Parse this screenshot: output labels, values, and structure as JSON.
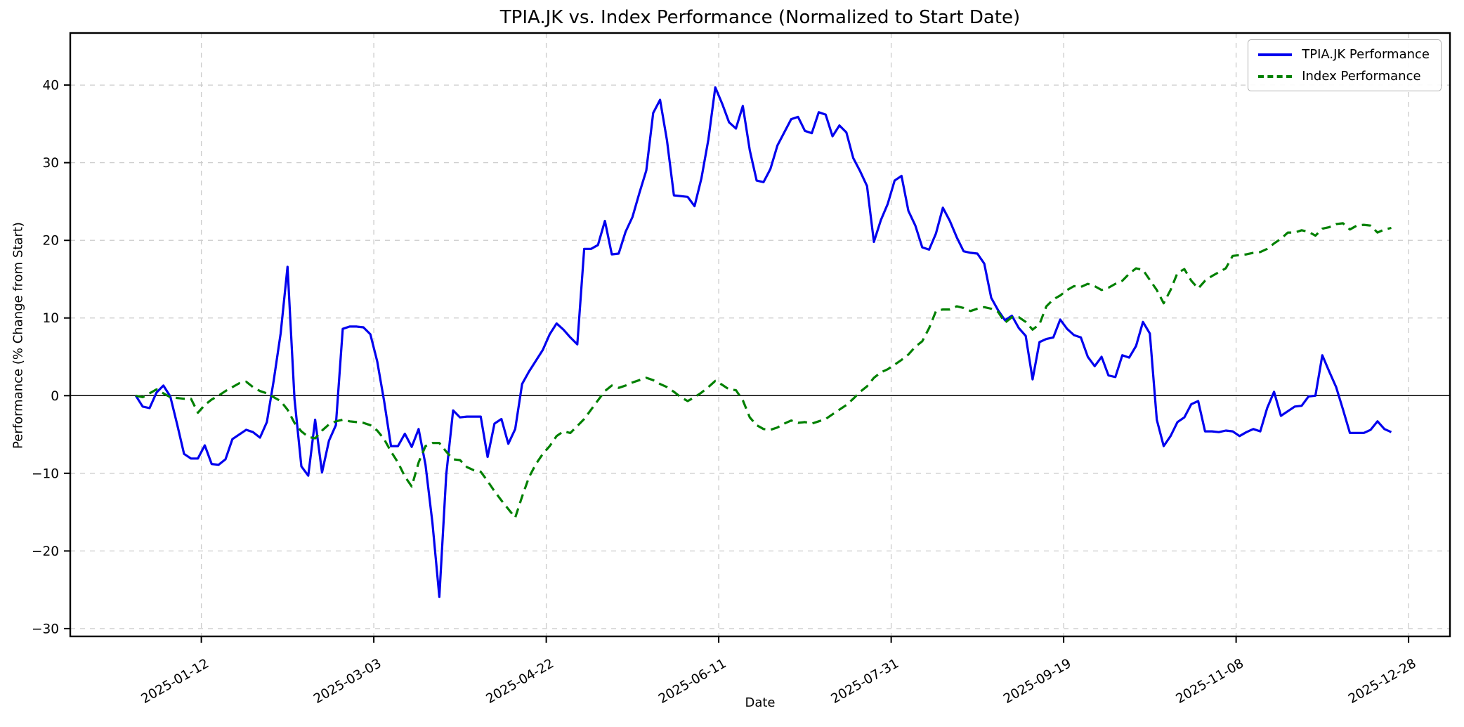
{
  "chart_data": {
    "type": "line",
    "title": "TPIA.JK vs. Index Performance (Normalized to Start Date)",
    "xlabel": "Date",
    "ylabel": "Performance (% Change from Start)",
    "grid": true,
    "grid_style": "dashed",
    "grid_color": "#cccccc",
    "background_color": "#ffffff",
    "zero_line": true,
    "zero_line_color": "#000000",
    "legend_position": "upper right",
    "ylim": [
      -31.0,
      46.7
    ],
    "yticks": [
      -30,
      -20,
      -10,
      0,
      10,
      20,
      30,
      40
    ],
    "x_axis": {
      "start": "2024-12-05",
      "end": "2026-01-09"
    },
    "xticks": [
      "2025-01-12",
      "2025-03-03",
      "2025-04-22",
      "2025-06-11",
      "2025-07-31",
      "2025-09-19",
      "2025-11-08",
      "2025-12-28"
    ],
    "xtick_rotation_deg": 30,
    "sampling_note": "series values estimated from plot, sampled every 2 days",
    "series": [
      {
        "name": "TPIA.JK Performance",
        "color": "#0000ee",
        "style": "solid",
        "start_date": "2024-12-24",
        "step_days": 2,
        "values": [
          0,
          -1.4,
          -1.6,
          0.4,
          1.3,
          -0.1,
          -3.7,
          -7.5,
          -8.1,
          -8.1,
          -6.4,
          -8.8,
          -8.9,
          -8.2,
          -5.6,
          -5,
          -4.4,
          -4.7,
          -5.4,
          -3.4,
          2,
          8,
          16.6,
          -0.4,
          -9.1,
          -10.3,
          -3.1,
          -9.9,
          -5.8,
          -3.8,
          8.6,
          8.9,
          8.9,
          8.8,
          7.9,
          4.4,
          -0.7,
          -6.5,
          -6.5,
          -4.9,
          -6.6,
          -4.3,
          -8.9,
          -16.4,
          -25.9,
          -10.2,
          -1.9,
          -2.8,
          -2.7,
          -2.7,
          -2.7,
          -7.9,
          -3.6,
          -3,
          -6.2,
          -4.3,
          1.5,
          3.1,
          4.5,
          5.9,
          7.9,
          9.3,
          8.5,
          7.5,
          6.6,
          18.9,
          18.9,
          19.4,
          22.5,
          18.2,
          18.3,
          21.1,
          23,
          26.1,
          29,
          36.4,
          38.1,
          32.9,
          25.8,
          25.7,
          25.6,
          24.4,
          28,
          33,
          39.7,
          37.6,
          35.2,
          34.4,
          37.3,
          31.6,
          27.7,
          27.5,
          29.2,
          32.2,
          33.9,
          35.6,
          35.9,
          34.1,
          33.8,
          36.5,
          36.2,
          33.4,
          34.8,
          33.9,
          30.6,
          28.9,
          27,
          19.8,
          22.6,
          24.7,
          27.7,
          28.3,
          23.8,
          21.9,
          19.1,
          18.8,
          20.9,
          24.2,
          22.5,
          20.4,
          18.6,
          18.4,
          18.3,
          17,
          12.6,
          11,
          9.7,
          10.3,
          8.7,
          7.7,
          2.1,
          6.9,
          7.3,
          7.5,
          9.8,
          8.6,
          7.8,
          7.5,
          5,
          3.8,
          5,
          2.6,
          2.4,
          5.2,
          4.9,
          6.4,
          9.5,
          8,
          -3.1,
          -6.5,
          -5.2,
          -3.4,
          -2.8,
          -1.1,
          -0.7,
          -4.6,
          -4.6,
          -4.7,
          -4.5,
          -4.6,
          -5.2,
          -4.7,
          -4.3,
          -4.6,
          -1.6,
          0.5,
          -2.6,
          -2,
          -1.4,
          -1.3,
          -0.1,
          0,
          5.2,
          3.1,
          1.1,
          -1.8,
          -4.8,
          -4.8,
          -4.8,
          -4.4,
          -3.3,
          -4.3,
          -4.7
        ]
      },
      {
        "name": "Index Performance",
        "color": "#008000",
        "style": "dashed",
        "start_date": "2024-12-24",
        "step_days": 2,
        "values": [
          0,
          -0.2,
          0.3,
          0.8,
          0.3,
          -0.2,
          -0.3,
          -0.4,
          -0.4,
          -2.2,
          -1.2,
          -0.5,
          0,
          0.6,
          1.1,
          1.6,
          1.8,
          1.1,
          0.6,
          0.3,
          -0.2,
          -0.7,
          -1.8,
          -3.5,
          -4.6,
          -5.3,
          -5.5,
          -4.5,
          -3.7,
          -3.3,
          -3.1,
          -3.3,
          -3.4,
          -3.5,
          -3.8,
          -4.5,
          -5.6,
          -7.2,
          -8.6,
          -10.4,
          -11.7,
          -8.6,
          -6.5,
          -6.1,
          -6.1,
          -7.2,
          -8.2,
          -8.3,
          -9.2,
          -9.6,
          -9.8,
          -11,
          -12.3,
          -13.5,
          -14.6,
          -15.7,
          -13,
          -10.5,
          -8.8,
          -7.5,
          -6.5,
          -5.2,
          -4.6,
          -4.8,
          -3.9,
          -3,
          -1.8,
          -0.6,
          0.6,
          1.3,
          1,
          1.3,
          1.7,
          2,
          2.3,
          2,
          1.5,
          1.1,
          0.5,
          -0.2,
          -0.7,
          -0.2,
          0.4,
          1.1,
          1.9,
          1.4,
          0.8,
          0.7,
          -0.6,
          -2.8,
          -3.8,
          -4.3,
          -4.4,
          -4.1,
          -3.6,
          -3.2,
          -3.5,
          -3.4,
          -3.6,
          -3.3,
          -3,
          -2.4,
          -1.8,
          -1.2,
          -0.4,
          0.5,
          1.2,
          2.3,
          3,
          3.4,
          4,
          4.6,
          5.3,
          6.3,
          7,
          8.7,
          10.9,
          11.1,
          11.1,
          11.5,
          11.3,
          10.9,
          11.2,
          11.4,
          11.2,
          10.8,
          9.4,
          10.1,
          10.1,
          9.5,
          8.5,
          9.2,
          11.5,
          12.4,
          12.9,
          13.6,
          14.1,
          14,
          14.4,
          14.1,
          13.6,
          13.9,
          14.4,
          14.8,
          15.7,
          16.4,
          16.2,
          14.9,
          13.6,
          11.9,
          13.6,
          15.8,
          16.3,
          14.8,
          13.8,
          14.8,
          15.4,
          15.9,
          16.4,
          18,
          18.1,
          18.2,
          18.4,
          18.5,
          18.9,
          19.6,
          20.2,
          21,
          21,
          21.3,
          21.1,
          20.6,
          21.5,
          21.7,
          22.1,
          22.2,
          21.4,
          21.9,
          22,
          21.9,
          21,
          21.4,
          21.6
        ]
      }
    ]
  }
}
